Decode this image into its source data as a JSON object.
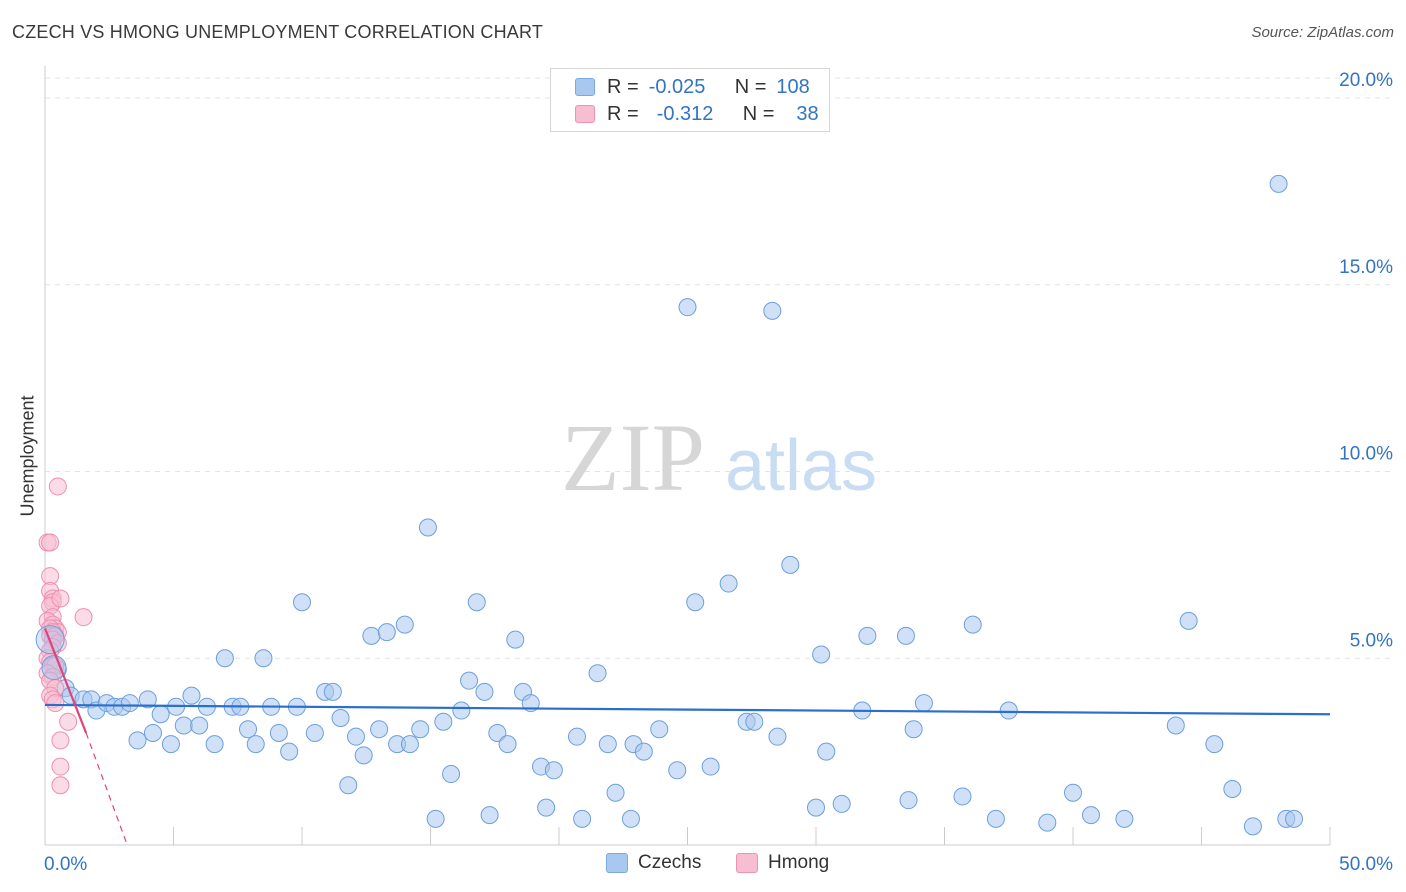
{
  "header": {
    "title": "CZECH VS HMONG UNEMPLOYMENT CORRELATION CHART",
    "source": "Source: ZipAtlas.com"
  },
  "legend": {
    "rows": [
      {
        "r_label": "R =",
        "r_value": "-0.025",
        "n_label": "N =",
        "n_value": "108",
        "color": "#a9c8f0",
        "border": "#7ea9e0"
      },
      {
        "r_label": "R =",
        "r_value": "-0.312",
        "n_label": "N =",
        "n_value": "38",
        "color": "#f7bdd0",
        "border": "#ef93b2"
      }
    ]
  },
  "bottom_legend": {
    "czechs": "Czechs",
    "hmong": "Hmong"
  },
  "watermark": {
    "zip": "ZIP",
    "atlas": "atlas"
  },
  "chart_data": {
    "type": "scatter",
    "title": "CZECH VS HMONG UNEMPLOYMENT CORRELATION CHART",
    "xlabel": "",
    "ylabel": "Unemployment",
    "xlim": [
      0,
      50
    ],
    "ylim": [
      0,
      20
    ],
    "x_tick_labels": {
      "left": "0.0%",
      "right": "50.0%"
    },
    "y_ticks": [
      {
        "value": 5,
        "label": "5.0%"
      },
      {
        "value": 10,
        "label": "10.0%"
      },
      {
        "value": 15,
        "label": "15.0%"
      },
      {
        "value": 20,
        "label": "20.0%"
      }
    ],
    "series": [
      {
        "name": "Czechs",
        "color": "#a9c8f0",
        "stroke": "#6c9fdc",
        "trend_color": "#2b6fcc",
        "trend": {
          "x0": 0,
          "y0": 3.75,
          "x1": 50,
          "y1": 3.5
        },
        "points": [
          [
            0.3,
            5.5
          ],
          [
            0.5,
            4.7
          ],
          [
            0.8,
            4.2
          ],
          [
            1.0,
            4.0
          ],
          [
            1.5,
            3.9
          ],
          [
            1.8,
            3.9
          ],
          [
            2.0,
            3.6
          ],
          [
            2.4,
            3.8
          ],
          [
            2.7,
            3.7
          ],
          [
            3.0,
            3.7
          ],
          [
            3.3,
            3.8
          ],
          [
            3.6,
            2.8
          ],
          [
            4.0,
            3.9
          ],
          [
            4.2,
            3.0
          ],
          [
            4.5,
            3.5
          ],
          [
            4.9,
            2.7
          ],
          [
            5.1,
            3.7
          ],
          [
            5.4,
            3.2
          ],
          [
            5.7,
            4.0
          ],
          [
            6.0,
            3.2
          ],
          [
            6.3,
            3.7
          ],
          [
            6.6,
            2.7
          ],
          [
            7.0,
            5.0
          ],
          [
            7.3,
            3.7
          ],
          [
            7.6,
            3.7
          ],
          [
            7.9,
            3.1
          ],
          [
            8.2,
            2.7
          ],
          [
            8.5,
            5.0
          ],
          [
            8.8,
            3.7
          ],
          [
            9.1,
            3.0
          ],
          [
            9.5,
            2.5
          ],
          [
            9.8,
            3.7
          ],
          [
            10.0,
            6.5
          ],
          [
            10.5,
            3.0
          ],
          [
            10.9,
            4.1
          ],
          [
            11.2,
            4.1
          ],
          [
            11.5,
            3.4
          ],
          [
            11.8,
            1.6
          ],
          [
            12.1,
            2.9
          ],
          [
            12.4,
            2.4
          ],
          [
            12.7,
            5.6
          ],
          [
            13.0,
            3.1
          ],
          [
            13.3,
            5.7
          ],
          [
            13.7,
            2.7
          ],
          [
            14.0,
            5.9
          ],
          [
            14.2,
            2.7
          ],
          [
            14.6,
            3.1
          ],
          [
            14.9,
            8.5
          ],
          [
            15.2,
            0.7
          ],
          [
            15.5,
            3.3
          ],
          [
            15.8,
            1.9
          ],
          [
            16.2,
            3.6
          ],
          [
            16.5,
            4.4
          ],
          [
            16.8,
            6.5
          ],
          [
            17.1,
            4.1
          ],
          [
            17.3,
            0.8
          ],
          [
            17.6,
            3.0
          ],
          [
            18.0,
            2.7
          ],
          [
            18.3,
            5.5
          ],
          [
            18.6,
            4.1
          ],
          [
            18.9,
            3.8
          ],
          [
            19.3,
            2.1
          ],
          [
            19.5,
            1.0
          ],
          [
            19.8,
            2.0
          ],
          [
            20.7,
            2.9
          ],
          [
            20.9,
            0.7
          ],
          [
            21.5,
            4.6
          ],
          [
            21.9,
            2.7
          ],
          [
            22.2,
            1.4
          ],
          [
            22.8,
            0.7
          ],
          [
            22.9,
            2.7
          ],
          [
            23.3,
            2.5
          ],
          [
            23.9,
            3.1
          ],
          [
            24.6,
            2.0
          ],
          [
            25.0,
            14.4
          ],
          [
            25.3,
            6.5
          ],
          [
            25.9,
            2.1
          ],
          [
            26.6,
            7.0
          ],
          [
            27.3,
            3.3
          ],
          [
            27.6,
            3.3
          ],
          [
            28.3,
            14.3
          ],
          [
            28.5,
            2.9
          ],
          [
            29.0,
            7.5
          ],
          [
            30.0,
            1.0
          ],
          [
            30.2,
            5.1
          ],
          [
            30.4,
            2.5
          ],
          [
            31.0,
            1.1
          ],
          [
            31.8,
            3.6
          ],
          [
            32.0,
            5.6
          ],
          [
            33.5,
            5.6
          ],
          [
            33.6,
            1.2
          ],
          [
            33.8,
            3.1
          ],
          [
            34.2,
            3.8
          ],
          [
            35.7,
            1.3
          ],
          [
            36.1,
            5.9
          ],
          [
            37.0,
            0.7
          ],
          [
            37.5,
            3.6
          ],
          [
            39.0,
            0.6
          ],
          [
            40.0,
            1.4
          ],
          [
            40.7,
            0.8
          ],
          [
            42.0,
            0.7
          ],
          [
            44.0,
            3.2
          ],
          [
            44.5,
            6.0
          ],
          [
            45.5,
            2.7
          ],
          [
            46.2,
            1.5
          ],
          [
            47.0,
            0.5
          ],
          [
            48.0,
            17.7
          ],
          [
            48.3,
            0.7
          ],
          [
            48.6,
            0.7
          ]
        ]
      },
      {
        "name": "Hmong",
        "color": "#f7bdd0",
        "stroke": "#ee8fb0",
        "trend_color": "#e0437a",
        "trend": {
          "x0": 0,
          "y0": 5.8,
          "x1": 1.6,
          "y1": 3.0
        },
        "trend_dashed": {
          "x0": 1.6,
          "y0": 3.0,
          "x1": 3.2,
          "y1": 0.0
        },
        "points": [
          [
            0.1,
            8.1
          ],
          [
            0.2,
            8.1
          ],
          [
            0.2,
            7.2
          ],
          [
            0.2,
            6.8
          ],
          [
            0.3,
            6.6
          ],
          [
            0.3,
            6.5
          ],
          [
            0.2,
            6.4
          ],
          [
            0.3,
            6.1
          ],
          [
            0.1,
            6.0
          ],
          [
            0.3,
            5.9
          ],
          [
            0.4,
            5.8
          ],
          [
            0.2,
            5.8
          ],
          [
            0.5,
            5.7
          ],
          [
            0.3,
            5.7
          ],
          [
            0.2,
            5.6
          ],
          [
            0.4,
            5.6
          ],
          [
            0.3,
            5.5
          ],
          [
            0.5,
            5.4
          ],
          [
            0.3,
            5.3
          ],
          [
            0.2,
            5.2
          ],
          [
            0.1,
            5.0
          ],
          [
            0.2,
            4.9
          ],
          [
            0.3,
            4.8
          ],
          [
            0.4,
            4.8
          ],
          [
            0.1,
            4.6
          ],
          [
            0.3,
            4.5
          ],
          [
            0.2,
            4.4
          ],
          [
            0.4,
            4.2
          ],
          [
            0.2,
            4.0
          ],
          [
            0.3,
            3.9
          ],
          [
            0.4,
            3.8
          ],
          [
            0.5,
            9.6
          ],
          [
            0.6,
            6.6
          ],
          [
            1.5,
            6.1
          ],
          [
            0.9,
            3.3
          ],
          [
            0.6,
            2.8
          ],
          [
            0.6,
            2.1
          ],
          [
            0.6,
            1.6
          ]
        ]
      }
    ]
  }
}
